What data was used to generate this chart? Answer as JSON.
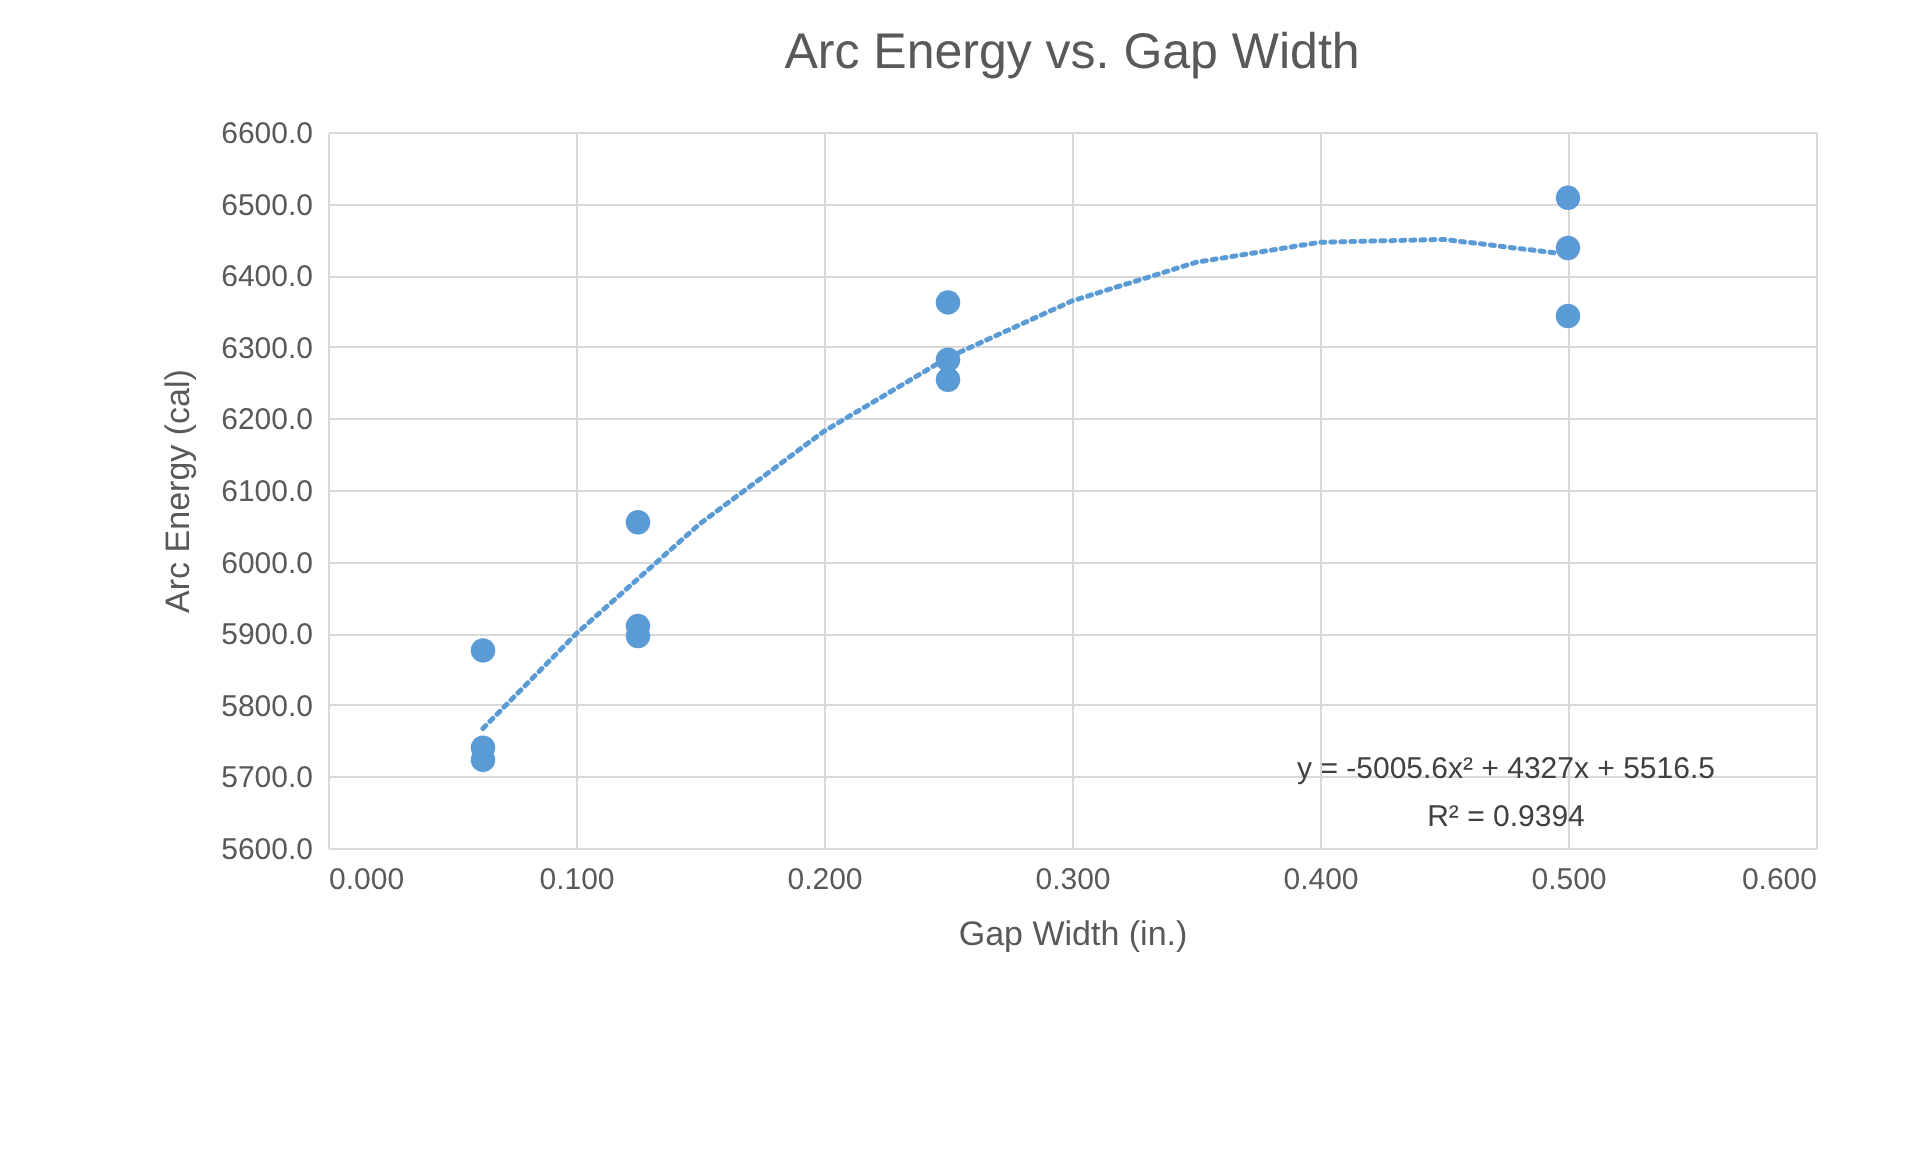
{
  "chart_data": {
    "type": "scatter",
    "title": "Arc Energy vs. Gap Width",
    "xlabel": "Gap Width (in.)",
    "ylabel": "Arc Energy (cal)",
    "x": [
      0.0625,
      0.0625,
      0.0625,
      0.125,
      0.125,
      0.125,
      0.25,
      0.25,
      0.25,
      0.5,
      0.5,
      0.5
    ],
    "series": [
      {
        "color": "#5b9bd5",
        "values": [
          5876,
          5740,
          5723,
          6055,
          5910,
          5896,
          6362,
          6282,
          6254,
          6508,
          6438,
          6343
        ]
      },
      {
        "type": "line",
        "color": "#5b9bd5",
        "line_style": "dotted",
        "marker": "none",
        "x": [
          0.0625,
          0.1,
          0.15,
          0.2,
          0.25,
          0.3,
          0.35,
          0.4,
          0.45,
          0.5
        ],
        "values": [
          5767,
          5899,
          6053,
          6182,
          6285,
          6364,
          6418,
          6446,
          6450,
          6429
        ]
      }
    ],
    "xlim": [
      0,
      0.6
    ],
    "xticks": [
      {
        "value": 0,
        "label": "0.000"
      },
      {
        "value": 0.1,
        "label": "0.100"
      },
      {
        "value": 0.2,
        "label": "0.200"
      },
      {
        "value": 0.3,
        "label": "0.300"
      },
      {
        "value": 0.4,
        "label": "0.400"
      },
      {
        "value": 0.5,
        "label": "0.500"
      },
      {
        "value": 0.6,
        "label": "0.600"
      }
    ],
    "ylim": [
      5600,
      6600
    ],
    "yticks": [
      {
        "value": 5600,
        "label": "5600.0"
      },
      {
        "value": 5700,
        "label": "5700.0"
      },
      {
        "value": 5800,
        "label": "5800.0"
      },
      {
        "value": 5900,
        "label": "5900.0"
      },
      {
        "value": 6000,
        "label": "6000.0"
      },
      {
        "value": 6100,
        "label": "6100.0"
      },
      {
        "value": 6200,
        "label": "6200.0"
      },
      {
        "value": 6300,
        "label": "6300.0"
      },
      {
        "value": 6400,
        "label": "6400.0"
      },
      {
        "value": 6500,
        "label": "6500.0"
      },
      {
        "value": 6600,
        "label": "6600.0"
      }
    ],
    "annotations": [
      "y = -5005.6x² + 4327x + 5516.5",
      "R² = 0.9394"
    ],
    "grid": true,
    "marker": "circle"
  }
}
